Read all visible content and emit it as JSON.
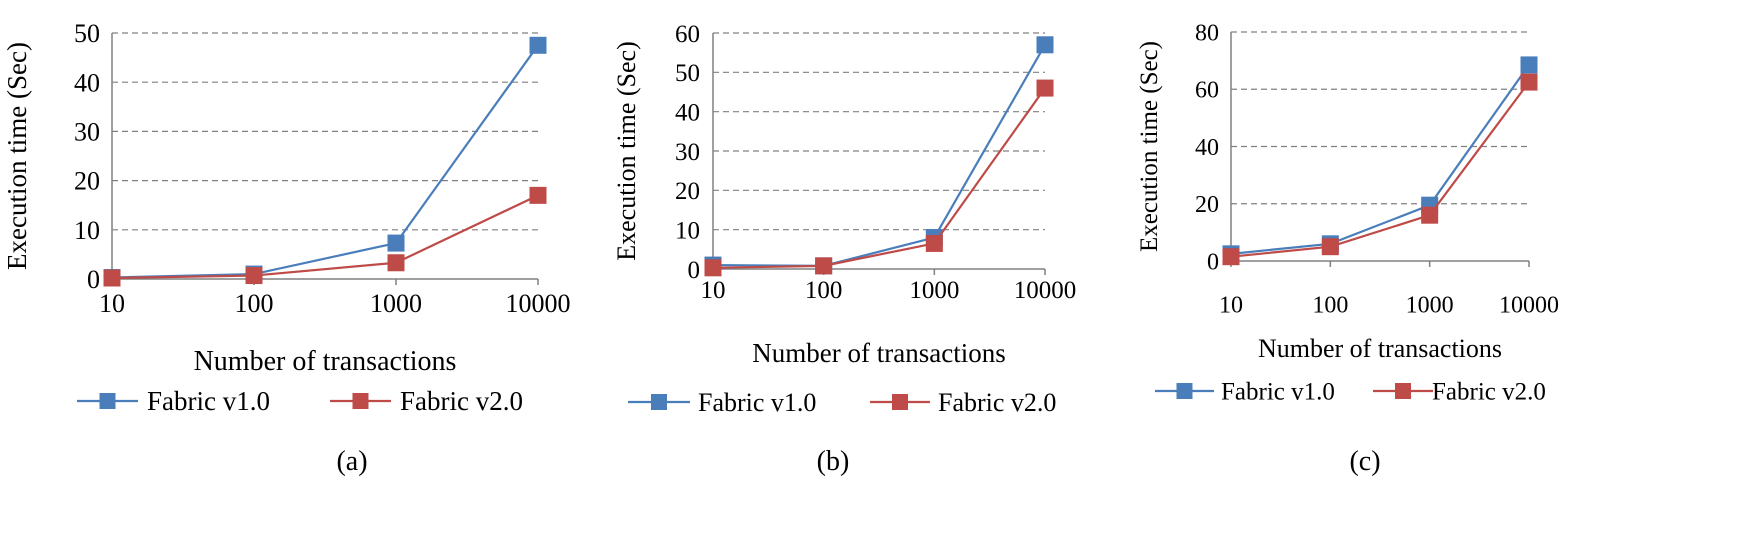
{
  "colors": {
    "fabric_v1": "#4A7EBB",
    "fabric_v2": "#BE4B48",
    "grid": "#808080",
    "axis": "#808080",
    "text": "#000000"
  },
  "chart_data": [
    {
      "type": "line",
      "panel_label": "(a)",
      "xlabel": "Number of transactions",
      "ylabel": "Execution time (Sec)",
      "categories": [
        "10",
        "100",
        "1000",
        "10000"
      ],
      "ylim": [
        0,
        50
      ],
      "yticks": [
        0,
        10,
        20,
        30,
        40,
        50
      ],
      "grid": "horizontal dashed",
      "legend_position": "bottom",
      "series": [
        {
          "name": "Fabric v1.0",
          "values": [
            0.3,
            1.0,
            7.3,
            47.5
          ]
        },
        {
          "name": "Fabric v2.0",
          "values": [
            0.2,
            0.7,
            3.3,
            17.0
          ]
        }
      ]
    },
    {
      "type": "line",
      "panel_label": "(b)",
      "xlabel": "Number of transactions",
      "ylabel": "Execution time (Sec)",
      "categories": [
        "10",
        "100",
        "1000",
        "10000"
      ],
      "ylim": [
        0,
        60
      ],
      "yticks": [
        0,
        10,
        20,
        30,
        40,
        50,
        60
      ],
      "grid": "horizontal dashed",
      "legend_position": "bottom",
      "series": [
        {
          "name": "Fabric v1.0",
          "values": [
            1.0,
            0.8,
            8.0,
            57.0
          ]
        },
        {
          "name": "Fabric v2.0",
          "values": [
            0.3,
            0.8,
            6.5,
            46.0
          ]
        }
      ]
    },
    {
      "type": "line",
      "panel_label": "(c)",
      "xlabel": "Number of transactions",
      "ylabel": "Execution time (Sec)",
      "categories": [
        "10",
        "100",
        "1000",
        "10000"
      ],
      "ylim": [
        0,
        80
      ],
      "yticks": [
        0,
        20,
        40,
        60,
        80
      ],
      "grid": "horizontal dashed",
      "legend_position": "bottom",
      "series": [
        {
          "name": "Fabric v1.0",
          "values": [
            2.5,
            6.0,
            19.5,
            68.5
          ]
        },
        {
          "name": "Fabric v2.0",
          "values": [
            1.5,
            5.0,
            16.0,
            62.5
          ]
        }
      ]
    }
  ]
}
